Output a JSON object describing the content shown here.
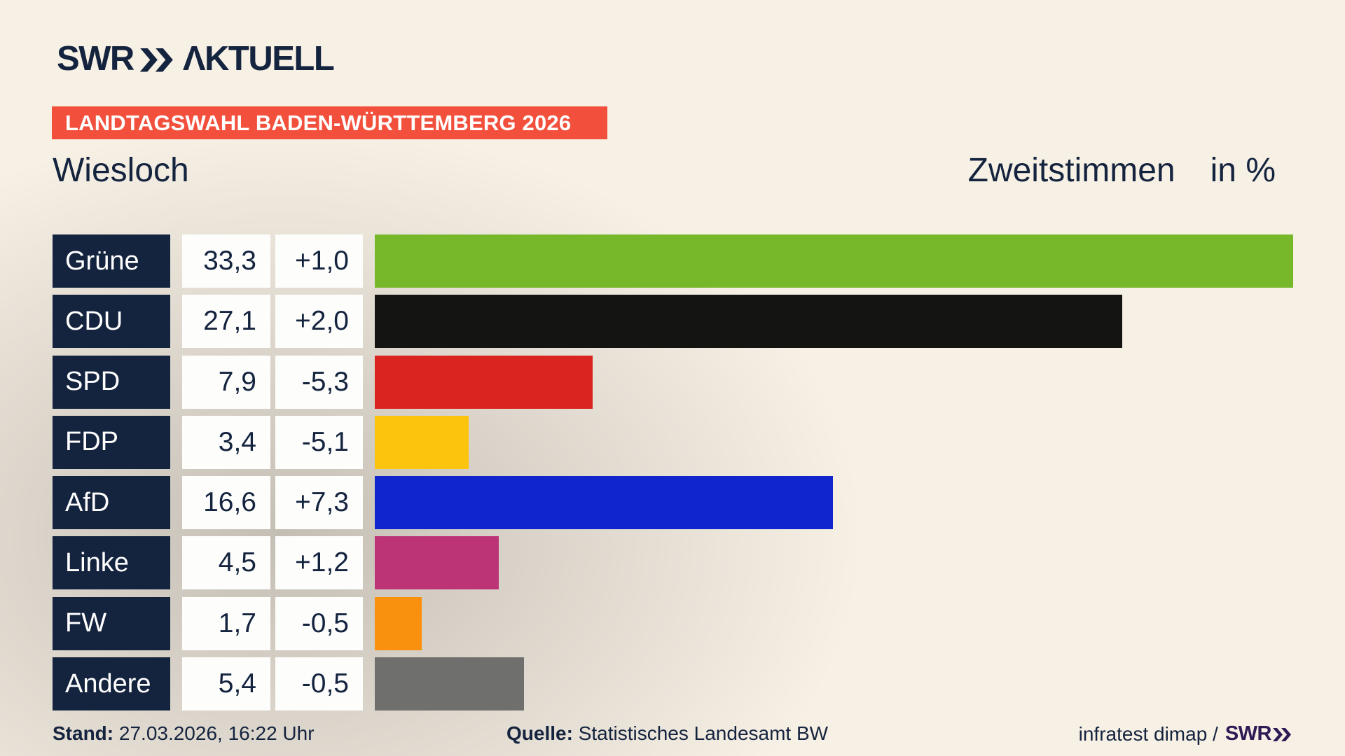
{
  "brand": {
    "name": "SWR",
    "suffix": "ΛKTUELL"
  },
  "banner": {
    "label": "LANDTAGSWAHL BADEN-WÜRTTEMBERG 2026"
  },
  "title": {
    "left": "Wiesloch",
    "right_main": "Zweitstimmen",
    "right_unit": "in %"
  },
  "chart_data": {
    "type": "bar",
    "orientation": "horizontal",
    "title": "Zweitstimmen in %",
    "subtitle": "Wiesloch",
    "unit": "%",
    "xlim": [
      0,
      33.3
    ],
    "grid": false,
    "categories": [
      "Grüne",
      "CDU",
      "SPD",
      "FDP",
      "AfD",
      "Linke",
      "FW",
      "Andere"
    ],
    "values": [
      33.3,
      27.1,
      7.9,
      3.4,
      16.6,
      4.5,
      1.7,
      5.4
    ],
    "value_labels": [
      "33,3",
      "27,1",
      "7,9",
      "3,4",
      "16,6",
      "4,5",
      "1,7",
      "5,4"
    ],
    "changes": [
      "+1,0",
      "+2,0",
      "-5,3",
      "-5,1",
      "+7,3",
      "+1,2",
      "-0,5",
      "-0,5"
    ],
    "colors": [
      "#76b82a",
      "#141413",
      "#da2420",
      "#fcc40c",
      "#1125cf",
      "#bc3476",
      "#f9910e",
      "#6f6f6e"
    ],
    "max_value": 33.3
  },
  "footer": {
    "stand_label": "Stand:",
    "stand_value": "27.03.2026, 16:22 Uhr",
    "quelle_label": "Quelle:",
    "quelle_value": "Statistisches Landesamt BW",
    "credit_text": "infratest dimap /",
    "credit_brand": "SWR"
  },
  "theme": {
    "navy": "#14233e",
    "cream_background": "#f7f0e5",
    "banner_red": "#f2503c",
    "box_white": "#fdfdfc",
    "footer_brand_violet": "#2e1a54"
  }
}
